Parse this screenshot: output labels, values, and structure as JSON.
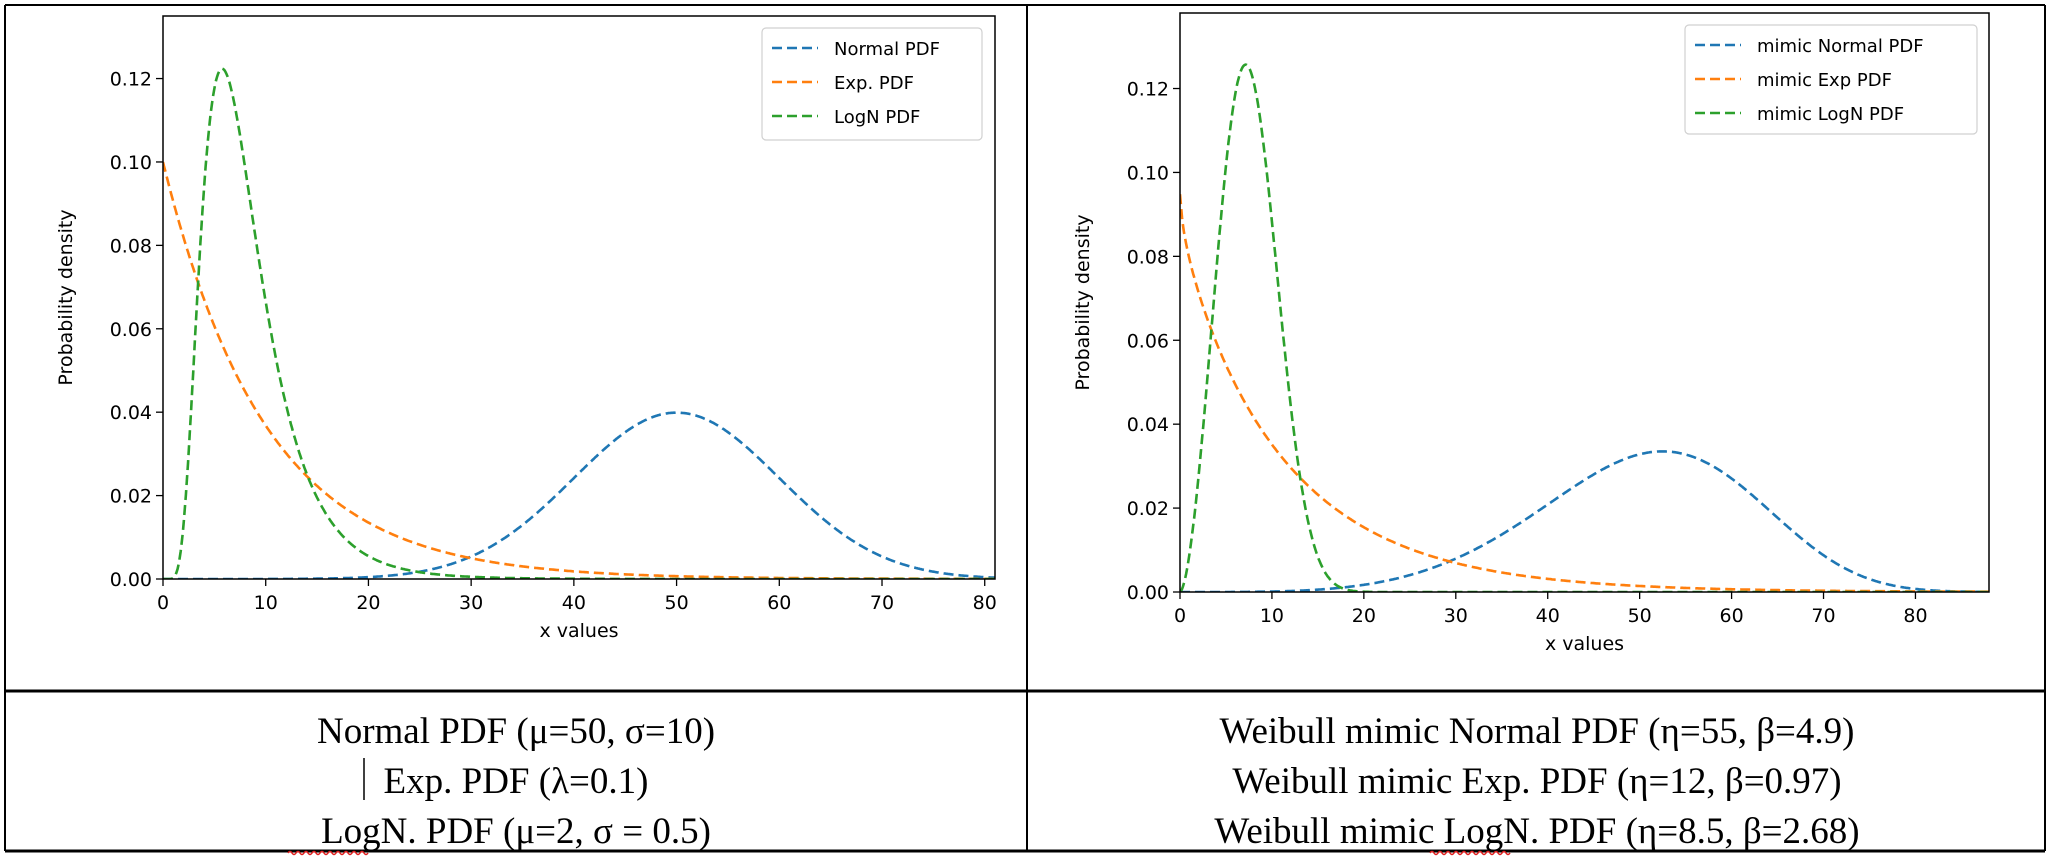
{
  "colors": {
    "normal": "#1f77b4",
    "exp": "#ff7f0e",
    "logn": "#2ca02c"
  },
  "chart_data": [
    {
      "type": "line",
      "xlabel": "x values",
      "ylabel": "Probability density",
      "xlim": [
        0,
        81
      ],
      "ylim": [
        0,
        0.135
      ],
      "xticks": [
        0,
        10,
        20,
        30,
        40,
        50,
        60,
        70,
        80
      ],
      "yticks": [
        "0.00",
        "0.02",
        "0.04",
        "0.06",
        "0.08",
        "0.10",
        "0.12"
      ],
      "legend_placement": "top-right",
      "grid": false,
      "line_style": "dashed",
      "series": [
        {
          "name": "Normal PDF",
          "dist": "normal",
          "mu": 50,
          "sigma": 10,
          "color": "#1f77b4",
          "peak": [
            50,
            0.0399
          ]
        },
        {
          "name": "Exp. PDF",
          "dist": "exponential",
          "lambda": 0.1,
          "color": "#ff7f0e",
          "peak": [
            0,
            0.1
          ]
        },
        {
          "name": "LogN PDF",
          "dist": "lognormal",
          "mu": 2,
          "sigma": 0.5,
          "color": "#2ca02c",
          "peak": [
            5.8,
            0.123
          ]
        }
      ]
    },
    {
      "type": "line",
      "xlabel": "x values",
      "ylabel": "Probability density",
      "xlim": [
        0,
        88
      ],
      "ylim": [
        0,
        0.138
      ],
      "xticks": [
        0,
        10,
        20,
        30,
        40,
        50,
        60,
        70,
        80
      ],
      "yticks": [
        "0.00",
        "0.02",
        "0.04",
        "0.06",
        "0.08",
        "0.10",
        "0.12"
      ],
      "legend_placement": "top-right",
      "grid": false,
      "line_style": "dashed",
      "series": [
        {
          "name": "mimic Normal PDF",
          "dist": "weibull",
          "eta": 55,
          "beta": 4.9,
          "color": "#1f77b4",
          "peak": [
            52.3,
            0.0335
          ]
        },
        {
          "name": "mimic Exp PDF",
          "dist": "weibull",
          "eta": 12,
          "beta": 0.97,
          "color": "#ff7f0e",
          "peak": [
            0,
            0.095
          ]
        },
        {
          "name": "mimic LogN PDF",
          "dist": "weibull",
          "eta": 8.5,
          "beta": 2.68,
          "color": "#2ca02c",
          "peak": [
            7.2,
            0.126
          ]
        }
      ]
    }
  ],
  "captions": {
    "left": [
      "Normal PDF (μ=50, σ=10)",
      "Exp. PDF (λ=0.1)",
      "LogN. PDF (μ=2, σ = 0.5)"
    ],
    "right": [
      "Weibull mimic Normal PDF (η=55, β=4.9)",
      "Weibull mimic Exp. PDF (η=12, β=0.97)",
      "Weibull mimic LogN. PDF (η=8.5, β=2.68)"
    ]
  }
}
